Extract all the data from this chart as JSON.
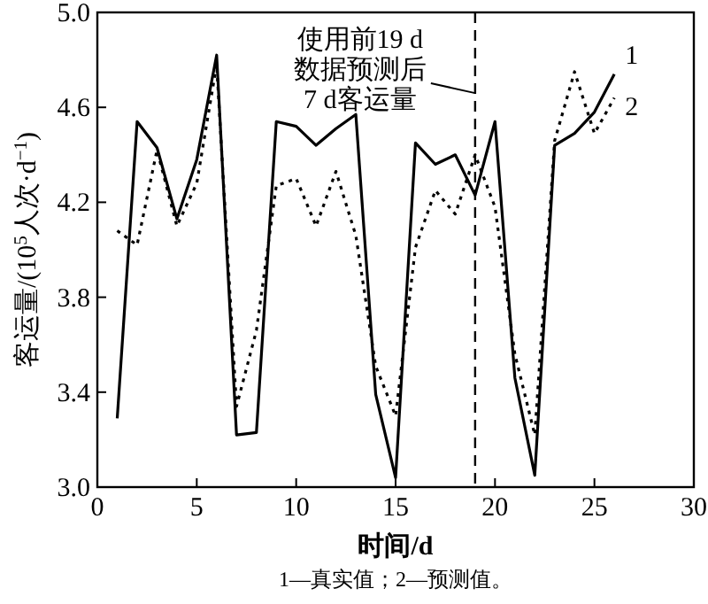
{
  "chart_data": {
    "type": "line",
    "xlabel": "时间/d",
    "ylabel": "客运量/(10$^{5}$人次·d$^{−1}$)",
    "xlim": [
      0,
      30
    ],
    "xticks": [
      0,
      5,
      10,
      15,
      20,
      25,
      30
    ],
    "ylim": [
      3.0,
      5.0
    ],
    "yticks": [
      {
        "value": 3.0,
        "label": "3.0"
      },
      {
        "value": 3.4,
        "label": "3.4"
      },
      {
        "value": 3.8,
        "label": "3.8"
      },
      {
        "value": 4.2,
        "label": "4.2"
      },
      {
        "value": 4.6,
        "label": "4.6"
      },
      {
        "value": 5.0,
        "label": "5.0"
      }
    ],
    "x": [
      1,
      2,
      3,
      4,
      5,
      6,
      7,
      8,
      9,
      10,
      11,
      12,
      13,
      14,
      15,
      16,
      17,
      18,
      19,
      20,
      21,
      22,
      23,
      24,
      25,
      26
    ],
    "series": [
      {
        "name": "1",
        "color": "#000000",
        "line_style": "solid",
        "values": [
          3.29,
          4.54,
          4.43,
          4.13,
          4.38,
          4.82,
          3.22,
          3.23,
          4.54,
          4.52,
          4.44,
          4.51,
          4.57,
          3.39,
          3.04,
          4.45,
          4.36,
          4.4,
          4.23,
          4.54,
          3.46,
          3.05,
          4.44,
          4.49,
          4.58,
          4.74
        ]
      },
      {
        "name": "2",
        "color": "#000000",
        "line_style": "dotted",
        "values": [
          4.08,
          4.02,
          4.42,
          4.1,
          4.28,
          4.78,
          3.34,
          3.66,
          4.27,
          4.3,
          4.1,
          4.33,
          4.06,
          3.51,
          3.3,
          4.01,
          4.25,
          4.15,
          4.4,
          4.18,
          3.56,
          3.22,
          4.46,
          4.75,
          4.49,
          4.64
        ]
      }
    ],
    "ref_lines": [
      {
        "axis": "x",
        "value": 19,
        "line_style": "dashed",
        "color": "#000000"
      }
    ],
    "annotations": [
      {
        "text": "使用前19 d\n数据预测后\n7 d客运量",
        "x": 19,
        "y": 4.66
      },
      "1—真实值；2—预测值。"
    ],
    "grid": false,
    "legend": false,
    "marker": "none"
  }
}
